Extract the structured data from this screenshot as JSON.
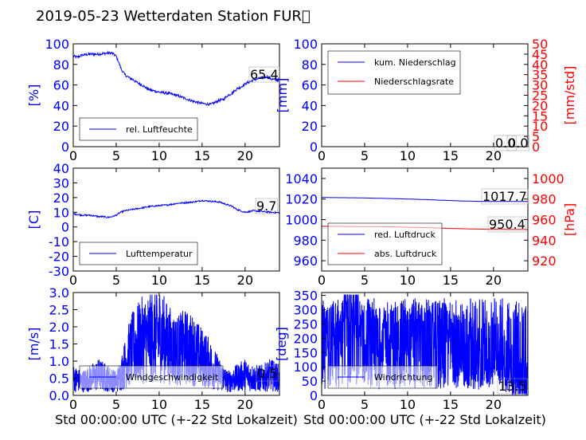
{
  "title": "2019-05-23 Wetterdaten Station FUR\u0000",
  "chart_data": [
    {
      "id": "humidity",
      "type": "line",
      "ylabel": "[%]",
      "ylabel_color": "#0000ff",
      "xlim": [
        0,
        24
      ],
      "ylim": [
        0,
        100
      ],
      "yticks": [
        0,
        20,
        40,
        60,
        80,
        100
      ],
      "xticks": [
        0,
        5,
        10,
        15,
        20
      ],
      "legend": [
        {
          "name": "rel. Luftfeuchte",
          "color": "#0000ff"
        }
      ],
      "last_value_label": "65.4",
      "series": [
        {
          "name": "rel. Luftfeuchte",
          "color": "#0000ff",
          "axis": "left",
          "x": [
            0,
            0.5,
            1,
            2,
            3,
            4,
            4.5,
            5,
            5.3,
            5.6,
            6,
            6.5,
            7,
            7.5,
            8,
            8.5,
            9,
            10,
            11,
            12,
            13,
            14,
            15,
            16,
            16.5,
            17,
            17.5,
            18,
            18.5,
            19,
            19.5,
            20,
            20.5,
            21,
            21.5,
            22,
            22.5,
            23,
            23.5,
            24
          ],
          "y": [
            88,
            87,
            89,
            90,
            90,
            91,
            91,
            88,
            82,
            75,
            70,
            67,
            65,
            62,
            60,
            57,
            55,
            53,
            52,
            50,
            47,
            44,
            42,
            41,
            43,
            45,
            46,
            50,
            52,
            56,
            58,
            61,
            63,
            65,
            66,
            67,
            68,
            66,
            65,
            65.4
          ]
        }
      ]
    },
    {
      "id": "precipitation",
      "type": "line",
      "ylabel": "[mm]",
      "ylabel_color": "#0000ff",
      "ylabel_right": "[mm/std]",
      "ylabel_right_color": "#ff0000",
      "xlim": [
        0,
        24
      ],
      "ylim": [
        0,
        100
      ],
      "ylim_right": [
        0,
        50
      ],
      "yticks": [
        0,
        20,
        40,
        60,
        80,
        100
      ],
      "yticks_right": [
        0,
        5,
        10,
        15,
        20,
        25,
        30,
        35,
        40,
        45,
        50
      ],
      "xticks": [
        0,
        5,
        10,
        15,
        20
      ],
      "legend": [
        {
          "name": "kum. Niederschlag",
          "color": "#0000ff"
        },
        {
          "name": "Niederschlagsrate",
          "color": "#ff0000"
        }
      ],
      "last_value_label": "0.0",
      "last_value_label_right": "0.0",
      "series": [
        {
          "name": "kum. Niederschlag",
          "color": "#0000ff",
          "axis": "left",
          "x": [
            0,
            24
          ],
          "y": [
            0,
            0
          ]
        },
        {
          "name": "Niederschlagsrate",
          "color": "#ff0000",
          "axis": "right",
          "x": [
            0,
            24
          ],
          "y": [
            0,
            0
          ]
        }
      ]
    },
    {
      "id": "temperature",
      "type": "line",
      "ylabel": "[C]",
      "ylabel_color": "#0000ff",
      "xlim": [
        0,
        24
      ],
      "ylim": [
        -30,
        40
      ],
      "yticks": [
        -30,
        -20,
        -10,
        0,
        10,
        20,
        30,
        40
      ],
      "xticks": [
        0,
        5,
        10,
        15,
        20
      ],
      "legend": [
        {
          "name": "Lufttemperatur",
          "color": "#0000ff"
        }
      ],
      "last_value_label": "9.7",
      "series": [
        {
          "name": "Lufttemperatur",
          "color": "#0000ff",
          "axis": "left",
          "x": [
            0,
            1,
            2,
            3,
            3.5,
            4,
            4.5,
            5,
            5.5,
            6,
            7,
            8,
            9,
            10,
            11,
            12,
            13,
            14,
            15,
            16,
            17,
            17.5,
            18,
            18.5,
            19,
            19.5,
            20,
            21,
            22,
            23,
            24
          ],
          "y": [
            9,
            8,
            8,
            7,
            7,
            6.5,
            7,
            8,
            10,
            11,
            12,
            13,
            14,
            14.5,
            15,
            16,
            16.5,
            17,
            18,
            17.5,
            17,
            16,
            15,
            14,
            12,
            11,
            10,
            11,
            10.5,
            10,
            9.7
          ]
        }
      ]
    },
    {
      "id": "pressure",
      "type": "line",
      "ylabel": "",
      "ylabel_color": "#0000ff",
      "ylabel_right": "[hPa]",
      "ylabel_right_color": "#ff0000",
      "xlim": [
        0,
        24
      ],
      "ylim": [
        950,
        1050
      ],
      "ylim_right": [
        910,
        1010
      ],
      "yticks": [
        960,
        980,
        1000,
        1020,
        1040
      ],
      "yticks_right": [
        920,
        940,
        960,
        980,
        1000
      ],
      "xticks": [
        0,
        5,
        10,
        15,
        20
      ],
      "legend": [
        {
          "name": "red. Luftdruck",
          "color": "#0000ff"
        },
        {
          "name": "abs. Luftdruck",
          "color": "#ff0000"
        }
      ],
      "last_value_label": "1017.7",
      "last_value_label_right": "950.4",
      "series": [
        {
          "name": "red. Luftdruck",
          "color": "#0000ff",
          "axis": "left",
          "x": [
            0,
            4,
            8,
            12,
            16,
            18,
            20,
            22,
            24
          ],
          "y": [
            1021.5,
            1021.2,
            1020.5,
            1019.5,
            1018.2,
            1017.8,
            1017.6,
            1017.7,
            1017.7
          ]
        },
        {
          "name": "abs. Luftdruck",
          "color": "#ff0000",
          "axis": "right",
          "x": [
            0,
            4,
            8,
            12,
            16,
            18,
            20,
            22,
            24
          ],
          "y": [
            953.5,
            953.3,
            953.0,
            952.2,
            951.2,
            950.8,
            950.5,
            950.4,
            950.4
          ]
        }
      ]
    },
    {
      "id": "wind_speed",
      "type": "line",
      "ylabel": "[m/s]",
      "ylabel_color": "#0000ff",
      "xlim": [
        0,
        24
      ],
      "ylim": [
        0,
        3.0
      ],
      "yticks": [
        0.0,
        0.5,
        1.0,
        1.5,
        2.0,
        2.5,
        3.0
      ],
      "xticks": [
        0,
        5,
        10,
        15,
        20
      ],
      "xlabel": "Std 00:00:00 UTC (+-22 Std Lokalzeit)",
      "legend": [
        {
          "name": "Windgeschwindigkeit",
          "color": "#0000ff"
        }
      ],
      "last_value_label": "0.5",
      "series": [
        {
          "name": "Windgeschwindigkeit",
          "color": "#0000ff",
          "axis": "left",
          "noisy": true,
          "x": [
            0,
            1,
            2,
            3,
            4,
            5,
            5.5,
            6,
            6.5,
            7,
            8,
            9,
            10,
            11,
            12,
            13,
            14,
            15,
            16,
            17,
            18,
            19,
            20,
            21,
            22,
            23,
            24
          ],
          "y": [
            0.5,
            0.4,
            0.5,
            0.6,
            0.5,
            0.4,
            0.6,
            0.9,
            1.2,
            1.4,
            1.6,
            1.7,
            1.8,
            1.5,
            1.3,
            1.4,
            1.3,
            1.1,
            0.9,
            0.6,
            0.4,
            0.5,
            0.6,
            0.5,
            0.5,
            0.6,
            0.5
          ]
        }
      ]
    },
    {
      "id": "wind_direction",
      "type": "line",
      "ylabel": "[deg]",
      "ylabel_color": "#0000ff",
      "xlim": [
        0,
        24
      ],
      "ylim": [
        0,
        360
      ],
      "yticks": [
        0,
        50,
        100,
        150,
        200,
        250,
        300,
        350
      ],
      "xticks": [
        0,
        5,
        10,
        15,
        20
      ],
      "xlabel": "Std 00:00:00 UTC (+-22 Std Lokalzeit)",
      "legend": [
        {
          "name": "Windrichtung",
          "color": "#0000ff"
        }
      ],
      "last_value_label": "13.5",
      "series": [
        {
          "name": "Windrichtung",
          "color": "#0000ff",
          "axis": "left",
          "noisy": true,
          "x": [
            0,
            1,
            2,
            3,
            4,
            5,
            6,
            7,
            8,
            9,
            10,
            11,
            12,
            13,
            14,
            15,
            16,
            17,
            18,
            19,
            20,
            21,
            22,
            23,
            24
          ],
          "y": [
            150,
            250,
            200,
            280,
            300,
            180,
            200,
            210,
            190,
            230,
            220,
            240,
            200,
            210,
            230,
            200,
            190,
            180,
            150,
            120,
            200,
            150,
            80,
            60,
            13.5
          ]
        }
      ]
    }
  ]
}
